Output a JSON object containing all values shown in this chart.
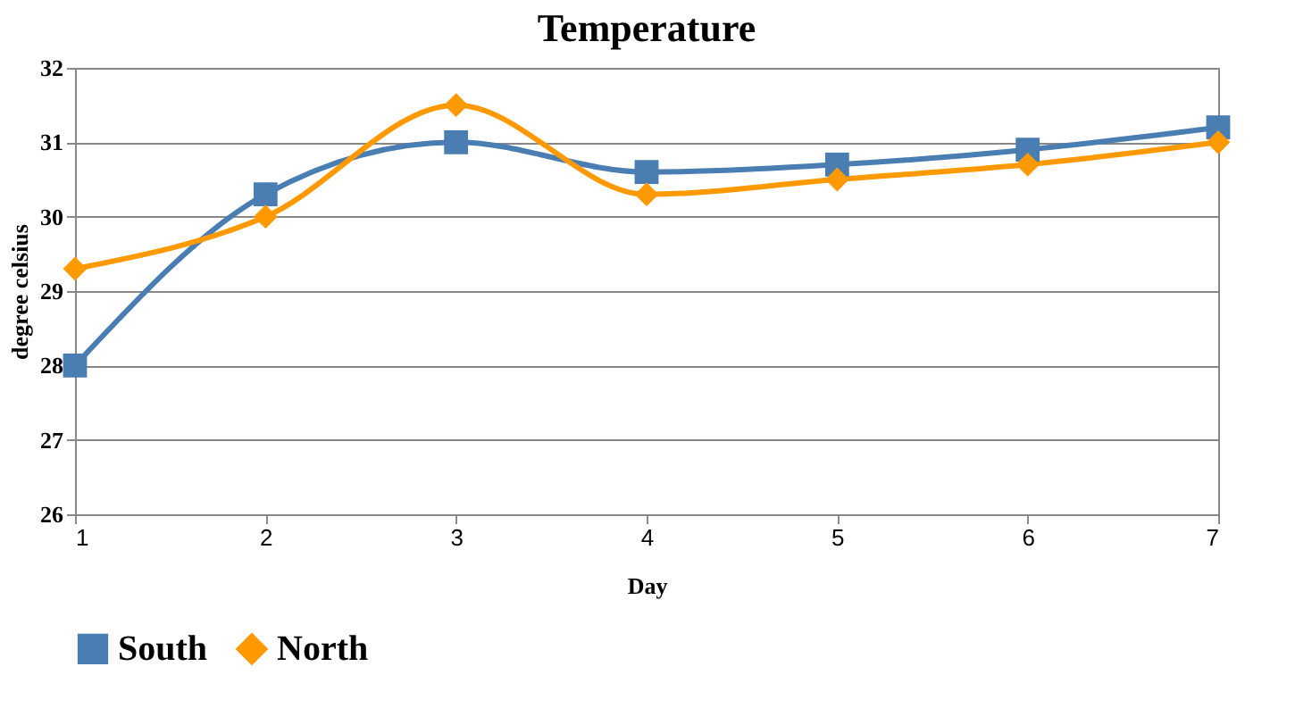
{
  "chart_data": {
    "type": "line",
    "title": "Temperature",
    "xlabel": "Day",
    "ylabel": "degree celsius",
    "x": [
      1,
      2,
      3,
      4,
      5,
      6,
      7
    ],
    "series": [
      {
        "name": "South",
        "color": "#4a7eb3",
        "marker": "square",
        "values": [
          28.0,
          30.3,
          31.0,
          30.6,
          30.7,
          30.9,
          31.2
        ]
      },
      {
        "name": "North",
        "color": "#ff9900",
        "marker": "diamond",
        "values": [
          29.3,
          30.0,
          31.5,
          30.3,
          30.5,
          30.7,
          31.0
        ]
      }
    ],
    "xlim": [
      1,
      7
    ],
    "xticks": [
      1,
      2,
      3,
      4,
      5,
      6,
      7
    ],
    "ylim": [
      26,
      32
    ],
    "yticks": [
      26,
      27,
      28,
      29,
      30,
      31,
      32
    ],
    "grid": "y",
    "legend": "bottom",
    "line_style": "solid"
  }
}
